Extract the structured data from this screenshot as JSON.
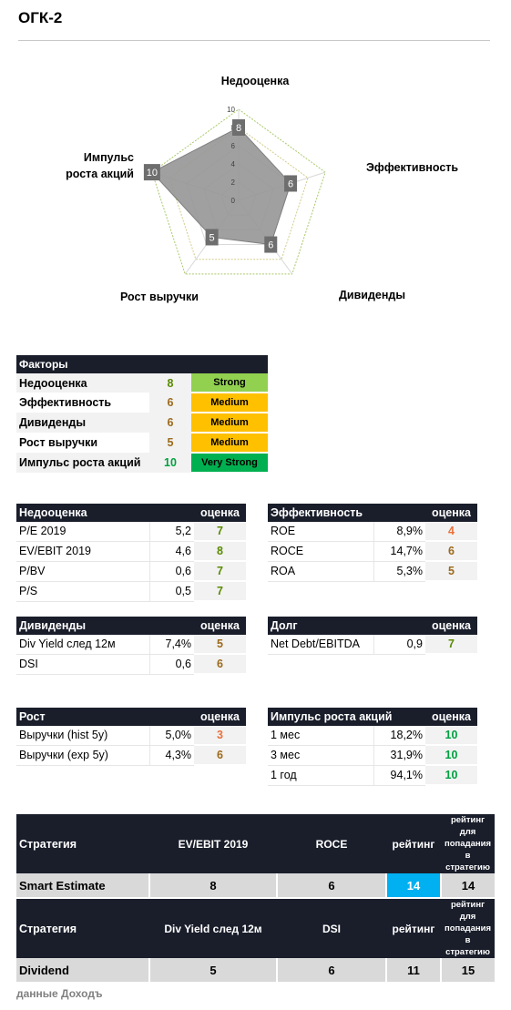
{
  "title": "ОГК-2",
  "radar": {
    "axes": [
      {
        "label": "Недооценка",
        "value": 8
      },
      {
        "label": "Эффективность",
        "value": 6
      },
      {
        "label": "Дивиденды",
        "value": 6
      },
      {
        "label": "Рост выручки",
        "value": 5
      },
      {
        "label": "Импульс роста акций",
        "value": 10
      }
    ],
    "label_impulse_line1": "Импульс",
    "label_impulse_line2": "роста акций",
    "ticks": [
      "10",
      "8",
      "6",
      "4",
      "2",
      "0"
    ]
  },
  "factors": {
    "header": "Факторы",
    "rows": [
      {
        "name": "Недооценка",
        "score": "8",
        "level": "Strong",
        "color": "#92d050",
        "score_color": "#5a8a00"
      },
      {
        "name": "Эффективность",
        "score": "6",
        "level": "Medium",
        "color": "#ffc000",
        "score_color": "#9c6a1c"
      },
      {
        "name": "Дивиденды",
        "score": "6",
        "level": "Medium",
        "color": "#ffc000",
        "score_color": "#9c6a1c"
      },
      {
        "name": "Рост выручки",
        "score": "5",
        "level": "Medium",
        "color": "#ffc000",
        "score_color": "#9c6a1c"
      },
      {
        "name": "Импульс роста акций",
        "score": "10",
        "level": "Very Strong",
        "color": "#00b050",
        "score_color": "#00a040"
      }
    ]
  },
  "valuation": {
    "header": "Недооценка",
    "score_header": "оценка",
    "rows": [
      {
        "label": "P/E 2019",
        "value": "5,2",
        "score": "7",
        "score_color": "#5a8a00"
      },
      {
        "label": "EV/EBIT 2019",
        "value": "4,6",
        "score": "8",
        "score_color": "#5a8a00"
      },
      {
        "label": "P/BV",
        "value": "0,6",
        "score": "7",
        "score_color": "#5a8a00"
      },
      {
        "label": "P/S",
        "value": "0,5",
        "score": "7",
        "score_color": "#5a8a00"
      }
    ]
  },
  "efficiency": {
    "header": "Эффективность",
    "score_header": "оценка",
    "rows": [
      {
        "label": "ROE",
        "value": "8,9%",
        "score": "4",
        "score_color": "#e9713a"
      },
      {
        "label": "ROCE",
        "value": "14,7%",
        "score": "6",
        "score_color": "#9c6a1c"
      },
      {
        "label": "ROA",
        "value": "5,3%",
        "score": "5",
        "score_color": "#9c6a1c"
      }
    ]
  },
  "dividends": {
    "header": "Дивиденды",
    "score_header": "оценка",
    "rows": [
      {
        "label": "Div Yield след 12м",
        "value": "7,4%",
        "score": "5",
        "score_color": "#9c6a1c"
      },
      {
        "label": "DSI",
        "value": "0,6",
        "score": "6",
        "score_color": "#9c6a1c"
      }
    ]
  },
  "debt": {
    "header": "Долг",
    "score_header": "оценка",
    "rows": [
      {
        "label": "Net Debt/EBITDA",
        "value": "0,9",
        "score": "7",
        "score_color": "#5a8a00"
      }
    ]
  },
  "growth": {
    "header": "Рост",
    "score_header": "оценка",
    "rows": [
      {
        "label": "Выручки (hist 5y)",
        "value": "5,0%",
        "score": "3",
        "score_color": "#e9713a"
      },
      {
        "label": "Выручки (exp 5y)",
        "value": "4,3%",
        "score": "6",
        "score_color": "#9c6a1c"
      }
    ]
  },
  "momentum": {
    "header": "Импульс роста акций",
    "score_header": "оценка",
    "rows": [
      {
        "label": "1 мес",
        "value": "18,2%",
        "score": "10",
        "score_color": "#00a040"
      },
      {
        "label": "3 мес",
        "value": "31,9%",
        "score": "10",
        "score_color": "#00a040"
      },
      {
        "label": "1 год",
        "value": "94,1%",
        "score": "10",
        "score_color": "#00a040"
      }
    ]
  },
  "strategy1": {
    "h_strategy": "Стратегия",
    "h_col1": "EV/EBIT 2019",
    "h_col2": "ROCE",
    "h_rating": "рейтинг",
    "h_target": "рейтинг для попадания в стратегию",
    "name": "Smart Estimate",
    "v1": "8",
    "v2": "6",
    "rating": "14",
    "target": "14",
    "rating_color": "#00b0f0"
  },
  "strategy2": {
    "h_strategy": "Стратегия",
    "h_col1": "Div Yield след 12м",
    "h_col2": "DSI",
    "h_rating": "рейтинг",
    "h_target": "рейтинг для попадания в стратегию",
    "name": "Dividend",
    "v1": "5",
    "v2": "6",
    "rating": "11",
    "target": "15"
  },
  "footer": "данные Доходъ"
}
